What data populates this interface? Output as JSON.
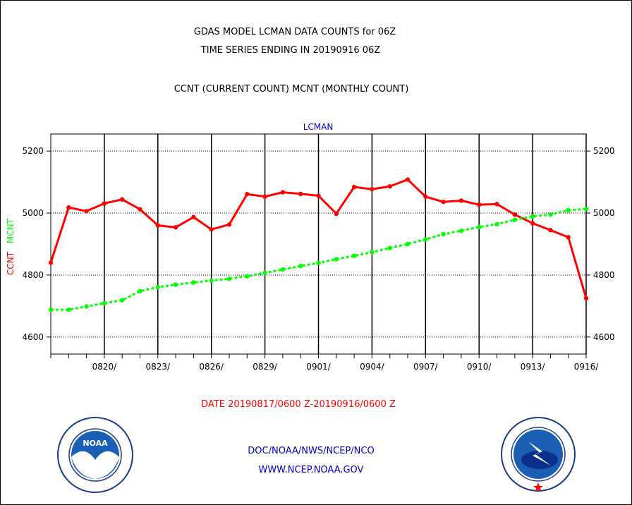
{
  "header": {
    "line1": "GDAS MODEL LCMAN DATA COUNTS for 06Z",
    "line2": "TIME SERIES ENDING IN 20190916 06Z",
    "line3": "CCNT (CURRENT COUNT) MCNT (MONTHLY COUNT)"
  },
  "footer": {
    "date_range": "DATE 20190817/0600 Z-20190916/0600 Z",
    "org": "DOC/NOAA/NWS/NCEP/NCO",
    "url": "WWW.NCEP.NOAA.GOV"
  },
  "colors": {
    "ccnt": "#ff0000",
    "mcnt": "#00ff00",
    "title_blue": "#0000cc",
    "footer_red": "#ff0000",
    "footer_blue": "#0000cc"
  },
  "logos": {
    "left_icon": "noaa-logo-icon",
    "left_text": "NOAA",
    "right_icon": "national-weather-service-logo-icon"
  },
  "chart_data": {
    "type": "line",
    "title": "LCMAN",
    "ylabel_parts": [
      {
        "text": "CCNT",
        "color": "#ff0000"
      },
      {
        "text": "MCNT",
        "color": "#00ff00"
      }
    ],
    "ylim": [
      4545,
      5255
    ],
    "yticks": [
      4600,
      4800,
      5000,
      5200
    ],
    "x_start_day": 0,
    "x_end_day": 30,
    "x_tick_days": [
      3,
      6,
      9,
      12,
      15,
      18,
      21,
      24,
      27,
      30
    ],
    "x_tick_labels": [
      "0820/",
      "0823/",
      "0826/",
      "0829/",
      "0901/",
      "0904/",
      "0907/",
      "0910/",
      "0913/",
      "0916/"
    ],
    "grid": true,
    "series": [
      {
        "name": "CCNT",
        "style": "solid",
        "values": [
          4840,
          5018,
          5006,
          5031,
          5044,
          5012,
          4960,
          4954,
          4987,
          4947,
          4963,
          5061,
          5053,
          5067,
          5062,
          5056,
          4998,
          5084,
          5077,
          5086,
          5108,
          5053,
          5036,
          5040,
          5027,
          5029,
          4995,
          4967,
          4945,
          4922,
          4725
        ]
      },
      {
        "name": "MCNT",
        "style": "dotted",
        "values": [
          4688,
          4688,
          4699,
          4709,
          4719,
          4748,
          4761,
          4769,
          4776,
          4782,
          4788,
          4796,
          4807,
          4818,
          4829,
          4839,
          4851,
          4862,
          4874,
          4887,
          4900,
          4915,
          4932,
          4943,
          4955,
          4964,
          4978,
          4989,
          4995,
          5009,
          5013
        ]
      }
    ]
  }
}
